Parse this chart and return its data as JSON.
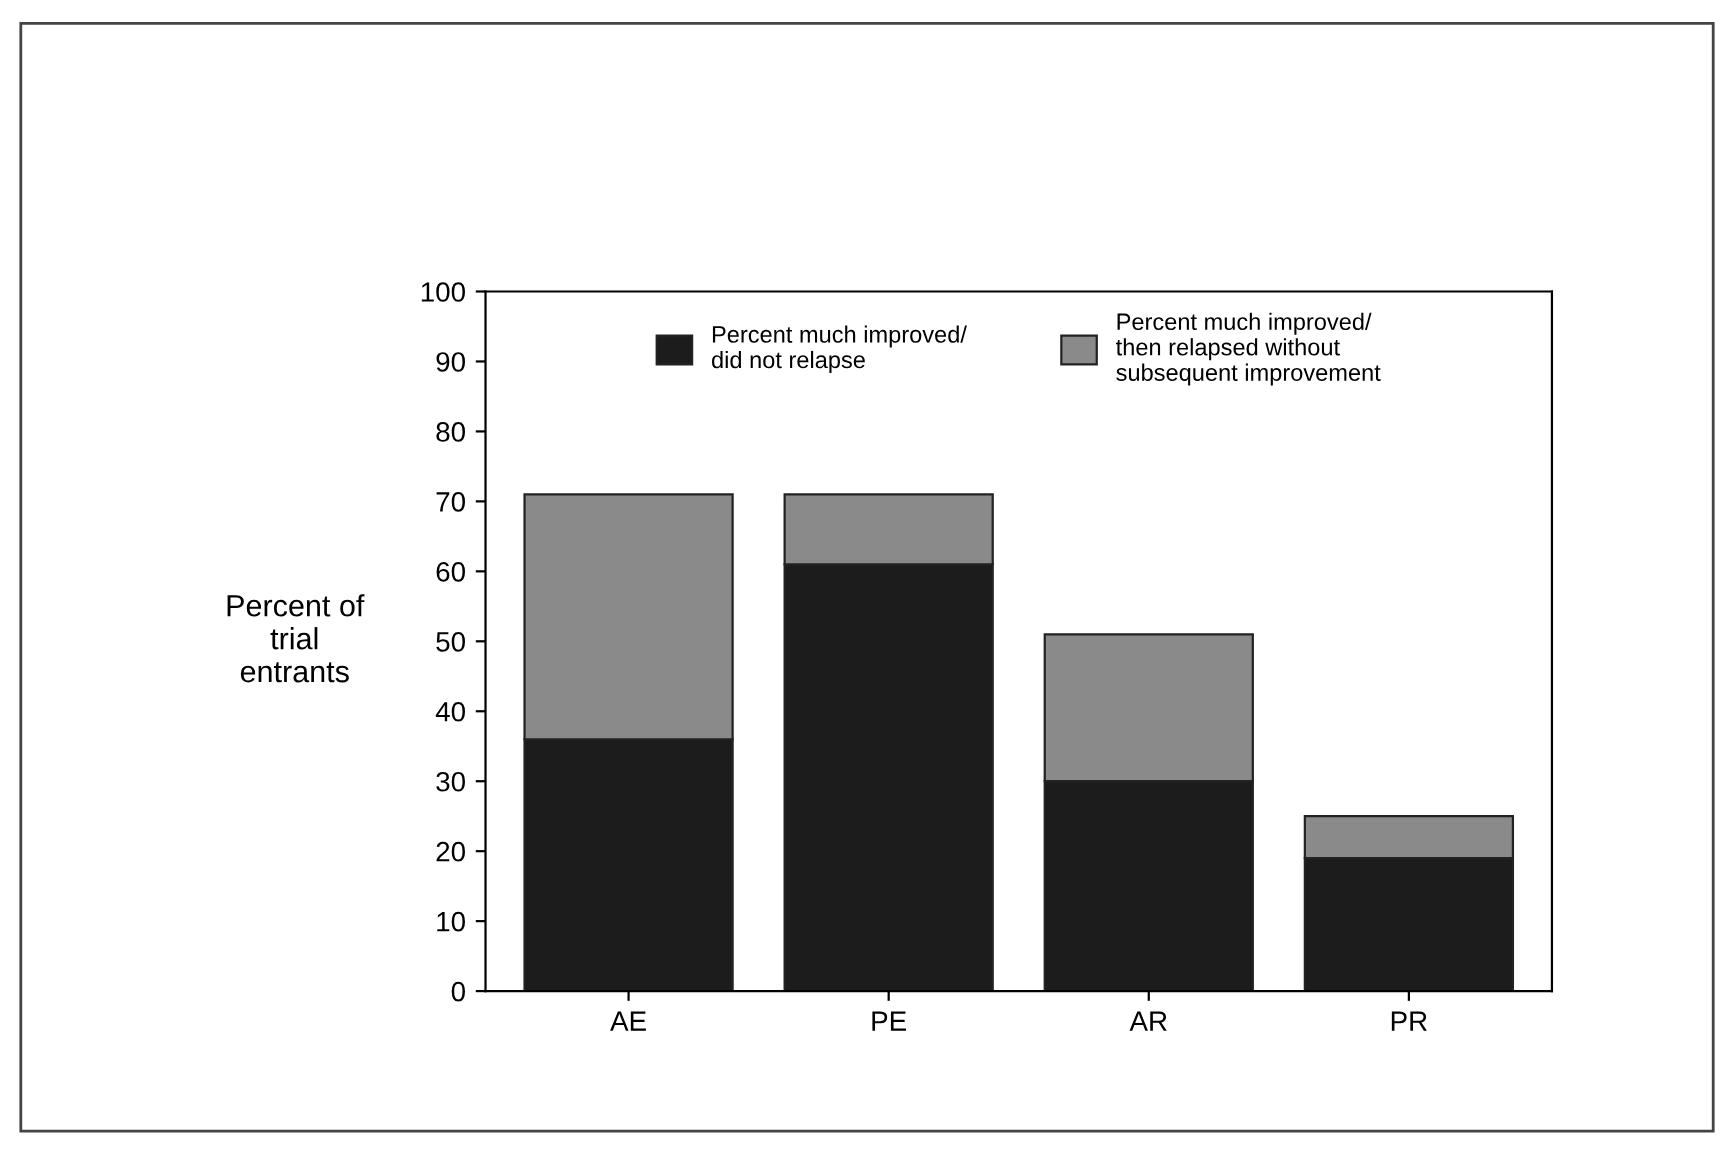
{
  "chart_data": {
    "type": "bar",
    "stacked": true,
    "ylabel": "Percent of\ntrial\nentrants",
    "categories": [
      "AE",
      "PE",
      "AR",
      "PR"
    ],
    "series": [
      {
        "name": "Percent much improved/\ndid not relapse",
        "color": "#1c1c1c",
        "values": [
          36,
          61,
          30,
          19
        ]
      },
      {
        "name": "Percent much improved/\nthen relapsed without\nsubsequent improvement",
        "color": "#8a8a8a",
        "values": [
          35,
          10,
          21,
          6
        ]
      }
    ],
    "ylim": [
      0,
      100
    ],
    "yticks": [
      0,
      10,
      20,
      30,
      40,
      50,
      60,
      70,
      80,
      90,
      100
    ],
    "grid": false,
    "legend": "top"
  }
}
